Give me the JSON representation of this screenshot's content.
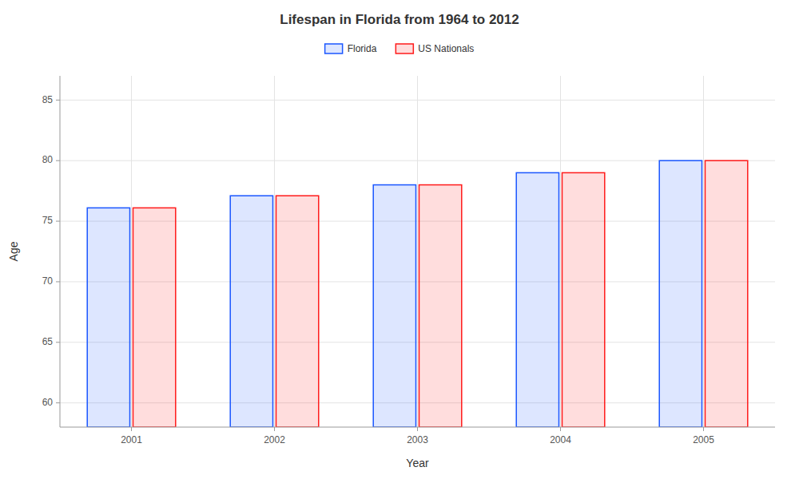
{
  "chart_data": {
    "type": "bar",
    "title": "Lifespan in Florida from 1964 to 2012",
    "xlabel": "Year",
    "ylabel": "Age",
    "categories": [
      "2001",
      "2002",
      "2003",
      "2004",
      "2005"
    ],
    "series": [
      {
        "name": "Florida",
        "color": "#1a56ff",
        "values": [
          76.1,
          77.1,
          78.0,
          79.0,
          80.0
        ]
      },
      {
        "name": "US Nationals",
        "color": "#ff1a1a",
        "values": [
          76.1,
          77.1,
          78.0,
          79.0,
          80.0
        ]
      }
    ],
    "ylim": [
      58,
      87
    ],
    "yticks": [
      60,
      65,
      70,
      75,
      80,
      85
    ],
    "grid": true,
    "legend": "top"
  }
}
